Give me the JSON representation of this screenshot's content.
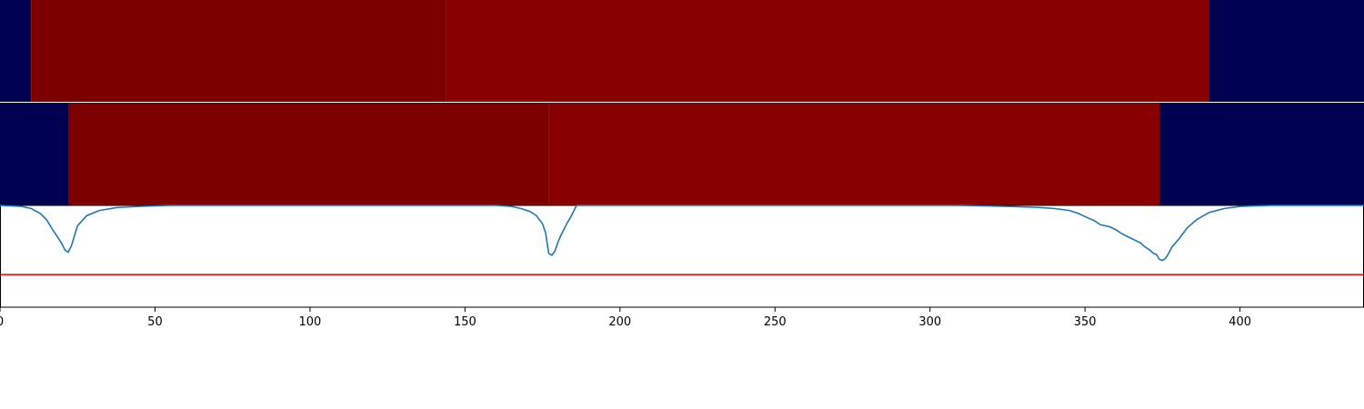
{
  "chart_data": [
    {
      "type": "heatmap",
      "name": "segmentation-band-1",
      "xlim": [
        0,
        440
      ],
      "colors": {
        "background": "#000050",
        "segment_a": "#7d0000",
        "segment_b": "#890000"
      },
      "segments": [
        {
          "start": 0,
          "end": 10,
          "class": "background"
        },
        {
          "start": 10,
          "end": 144,
          "class": "segment_a"
        },
        {
          "start": 144,
          "end": 390,
          "class": "segment_b"
        },
        {
          "start": 390,
          "end": 440,
          "class": "background"
        }
      ]
    },
    {
      "type": "heatmap",
      "name": "segmentation-band-2",
      "xlim": [
        0,
        440
      ],
      "colors": {
        "background": "#000050",
        "segment_a": "#7d0000",
        "segment_b": "#890000"
      },
      "segments": [
        {
          "start": 0,
          "end": 22,
          "class": "background"
        },
        {
          "start": 22,
          "end": 177,
          "class": "segment_a"
        },
        {
          "start": 177,
          "end": 374,
          "class": "segment_b"
        },
        {
          "start": 374,
          "end": 440,
          "class": "background"
        }
      ]
    },
    {
      "type": "line",
      "name": "signal-panel",
      "xlim": [
        0,
        440
      ],
      "ylim": [
        -1.0,
        0.0
      ],
      "threshold": -0.68,
      "line_color": "#1f77b4",
      "threshold_color": "#e00000",
      "xticks": [
        "0",
        "50",
        "100",
        "150",
        "200",
        "250",
        "300",
        "350",
        "400"
      ],
      "x": [
        0,
        7,
        10,
        13,
        15,
        17,
        19,
        20,
        21,
        22,
        23,
        25,
        28,
        32,
        38,
        45,
        55,
        100,
        150,
        160,
        165,
        168,
        171,
        173,
        175,
        176,
        177,
        178,
        179,
        180,
        181,
        182,
        183,
        184,
        186,
        190,
        200,
        230,
        260,
        290,
        310,
        325,
        335,
        340,
        345,
        348,
        350,
        353,
        355,
        358,
        360,
        362,
        364,
        366,
        368,
        369,
        370,
        371,
        372,
        373,
        374,
        375,
        376,
        377,
        378,
        380,
        383,
        386,
        390,
        395,
        400,
        410,
        420,
        440
      ],
      "y": [
        0.0,
        -0.01,
        -0.03,
        -0.08,
        -0.14,
        -0.24,
        -0.33,
        -0.38,
        -0.44,
        -0.46,
        -0.4,
        -0.2,
        -0.1,
        -0.05,
        -0.02,
        -0.01,
        0.0,
        0.0,
        0.0,
        0.0,
        -0.01,
        -0.03,
        -0.06,
        -0.1,
        -0.18,
        -0.27,
        -0.47,
        -0.49,
        -0.45,
        -0.36,
        -0.29,
        -0.23,
        -0.17,
        -0.12,
        0.0,
        0.0,
        0.0,
        0.0,
        0.0,
        0.0,
        0.0,
        -0.01,
        -0.02,
        -0.03,
        -0.05,
        -0.08,
        -0.11,
        -0.15,
        -0.19,
        -0.21,
        -0.24,
        -0.28,
        -0.31,
        -0.34,
        -0.37,
        -0.4,
        -0.42,
        -0.44,
        -0.47,
        -0.48,
        -0.53,
        -0.54,
        -0.52,
        -0.47,
        -0.41,
        -0.34,
        -0.22,
        -0.14,
        -0.07,
        -0.03,
        -0.01,
        0.0,
        0.0,
        0.0
      ]
    }
  ]
}
